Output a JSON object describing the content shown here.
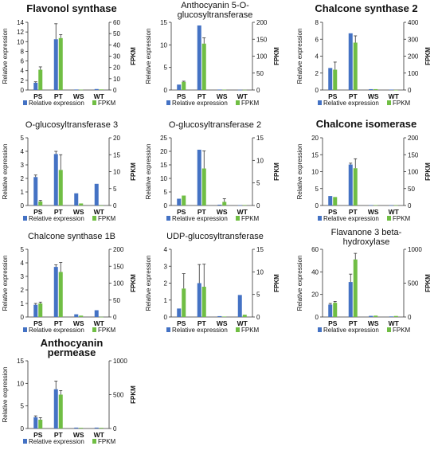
{
  "legend": {
    "series_a": "Relative expression",
    "series_b": "FPKM"
  },
  "colors": {
    "relative_expression": "#4472C4",
    "fpkm": "#70BE44",
    "axis": "#333333",
    "text": "#111111"
  },
  "chart_data": [
    {
      "type": "bar",
      "title": "Flavonol synthase",
      "categories": [
        "PS",
        "PT",
        "WS",
        "WT"
      ],
      "ylabel": "Relative expression",
      "y2label": "FPKM",
      "ylim": [
        0,
        14
      ],
      "yticks": [
        0,
        2,
        4,
        6,
        8,
        10,
        12,
        14
      ],
      "y2lim": [
        0,
        60
      ],
      "y2ticks": [
        0,
        10,
        20,
        30,
        40,
        50,
        60
      ],
      "series": [
        {
          "name": "Relative expression",
          "axis": "left",
          "values": [
            1.5,
            10.5,
            0.1,
            0.2
          ],
          "errors": [
            0.2,
            3.2,
            0,
            0
          ]
        },
        {
          "name": "FPKM",
          "axis": "right",
          "values": [
            18,
            46,
            0.3,
            0.5
          ],
          "errors": [
            2.5,
            3,
            0,
            0
          ]
        }
      ]
    },
    {
      "type": "bar",
      "title": "Anthocyanin 5-O-glucosyltransferase",
      "title_lines": [
        "Anthocyanin 5-O-",
        "glucosyltransferase"
      ],
      "categories": [
        "PS",
        "PT",
        "WS",
        "WT"
      ],
      "ylabel": "Relative expression",
      "y2label": "FPKM",
      "ylim": [
        0,
        15
      ],
      "yticks": [
        0,
        5,
        10,
        15
      ],
      "y2lim": [
        0,
        200
      ],
      "y2ticks": [
        0,
        50,
        100,
        150,
        200
      ],
      "series": [
        {
          "name": "Relative expression",
          "axis": "left",
          "values": [
            1.2,
            14.3,
            0.1,
            0.05
          ],
          "errors": [
            0,
            0,
            0,
            0
          ]
        },
        {
          "name": "FPKM",
          "axis": "right",
          "values": [
            24,
            137,
            1,
            0.5
          ],
          "errors": [
            2,
            17,
            0,
            0
          ]
        }
      ]
    },
    {
      "type": "bar",
      "title": "Chalcone synthase 2",
      "categories": [
        "PS",
        "PT",
        "WS",
        "WT"
      ],
      "ylabel": "Relative expression",
      "y2label": "FPKM",
      "ylim": [
        0,
        8
      ],
      "yticks": [
        0,
        2,
        4,
        6,
        8
      ],
      "y2lim": [
        0,
        400
      ],
      "y2ticks": [
        0,
        100,
        200,
        300,
        400
      ],
      "series": [
        {
          "name": "Relative expression",
          "axis": "left",
          "values": [
            2.6,
            6.7,
            0.1,
            0.05
          ],
          "errors": [
            0,
            0,
            0,
            0
          ]
        },
        {
          "name": "FPKM",
          "axis": "right",
          "values": [
            120,
            280,
            5,
            0.5
          ],
          "errors": [
            45,
            40,
            0,
            0
          ]
        }
      ]
    },
    {
      "type": "bar",
      "title": "O-glucosyltransferase 3",
      "categories": [
        "PS",
        "PT",
        "WS",
        "WT"
      ],
      "ylabel": "Relative expression",
      "y2label": "FPKM",
      "ylim": [
        0,
        5
      ],
      "yticks": [
        0,
        1,
        2,
        3,
        4,
        5
      ],
      "y2lim": [
        0,
        20
      ],
      "y2ticks": [
        0,
        5,
        10,
        15,
        20
      ],
      "series": [
        {
          "name": "Relative expression",
          "axis": "left",
          "values": [
            2.1,
            3.8,
            0.9,
            1.6
          ],
          "errors": [
            0.15,
            0.2,
            0,
            0
          ]
        },
        {
          "name": "FPKM",
          "axis": "right",
          "values": [
            1.2,
            10.5,
            0.6,
            0
          ],
          "errors": [
            0.3,
            4.5,
            0,
            0
          ]
        }
      ]
    },
    {
      "type": "bar",
      "title": "O-glucosyltransferase 2",
      "categories": [
        "PS",
        "PT",
        "WS",
        "WT"
      ],
      "ylabel": "Relative expression",
      "y2label": "FPKM",
      "ylim": [
        0,
        25
      ],
      "yticks": [
        0,
        5,
        10,
        15,
        20,
        25
      ],
      "y2lim": [
        0,
        15
      ],
      "y2ticks": [
        0,
        5,
        10,
        15
      ],
      "series": [
        {
          "name": "Relative expression",
          "axis": "left",
          "values": [
            2.5,
            20.6,
            0.3,
            0.1
          ],
          "errors": [
            0,
            0,
            0,
            0
          ]
        },
        {
          "name": "FPKM",
          "axis": "right",
          "values": [
            2.2,
            8.2,
            0.8,
            0.1
          ],
          "errors": [
            0,
            3.9,
            0.7,
            0
          ]
        }
      ]
    },
    {
      "type": "bar",
      "title": "Chalcone isomerase",
      "categories": [
        "PS",
        "PT",
        "WS",
        "WT"
      ],
      "ylabel": "Relative expression",
      "y2label": "FPKM",
      "ylim": [
        0,
        20
      ],
      "yticks": [
        0,
        5,
        10,
        15,
        20
      ],
      "y2lim": [
        0,
        200
      ],
      "y2ticks": [
        0,
        50,
        100,
        150,
        200
      ],
      "series": [
        {
          "name": "Relative expression",
          "axis": "left",
          "values": [
            2.8,
            12.1,
            0.1,
            0.05
          ],
          "errors": [
            0,
            0.4,
            0,
            0
          ]
        },
        {
          "name": "FPKM",
          "axis": "right",
          "values": [
            25,
            110,
            1,
            0.5
          ],
          "errors": [
            0,
            28,
            0,
            0
          ]
        }
      ]
    },
    {
      "type": "bar",
      "title": "Chalcone synthase 1B",
      "categories": [
        "PS",
        "PT",
        "WS",
        "WT"
      ],
      "ylabel": "Relative expression",
      "y2label": "FPKM",
      "ylim": [
        0,
        5
      ],
      "yticks": [
        0,
        1,
        2,
        3,
        4,
        5
      ],
      "y2lim": [
        0,
        200
      ],
      "y2ticks": [
        0,
        50,
        100,
        150,
        200
      ],
      "series": [
        {
          "name": "Relative expression",
          "axis": "left",
          "values": [
            0.9,
            3.7,
            0.2,
            0.5
          ],
          "errors": [
            0.1,
            0.15,
            0,
            0
          ]
        },
        {
          "name": "FPKM",
          "axis": "right",
          "values": [
            40,
            133,
            4,
            0.5
          ],
          "errors": [
            4,
            28,
            0,
            0
          ]
        }
      ]
    },
    {
      "type": "bar",
      "title": "UDP-glucosyltransferase",
      "categories": [
        "PS",
        "PT",
        "WS",
        "WT"
      ],
      "ylabel": "Relative expression",
      "y2label": "FPKM",
      "ylim": [
        0,
        4
      ],
      "yticks": [
        0,
        1,
        2,
        3,
        4
      ],
      "y2lim": [
        0,
        15
      ],
      "y2ticks": [
        0,
        5,
        10,
        15
      ],
      "series": [
        {
          "name": "Relative expression",
          "axis": "left",
          "values": [
            0.5,
            2.0,
            0.05,
            1.3
          ],
          "errors": [
            0,
            1.1,
            0,
            0
          ]
        },
        {
          "name": "FPKM",
          "axis": "right",
          "values": [
            6.3,
            6.7,
            0.1,
            0.5
          ],
          "errors": [
            3.3,
            5,
            0,
            0
          ]
        }
      ]
    },
    {
      "type": "bar",
      "title": "Flavanone 3 beta-hydroxylase",
      "title_lines": [
        "Flavanone 3 beta-",
        "hydroxylase"
      ],
      "categories": [
        "PS",
        "PT",
        "WS",
        "WT"
      ],
      "ylabel": "Relative expression",
      "y2label": "FPKM",
      "ylim": [
        0,
        60
      ],
      "yticks": [
        0,
        20,
        40,
        60
      ],
      "y2lim": [
        0,
        1000
      ],
      "y2ticks": [
        0,
        500,
        1000
      ],
      "series": [
        {
          "name": "Relative expression",
          "axis": "left",
          "values": [
            11,
            31,
            1,
            0.5
          ],
          "errors": [
            1,
            7,
            0,
            0
          ]
        },
        {
          "name": "FPKM",
          "axis": "right",
          "values": [
            210,
            850,
            20,
            15
          ],
          "errors": [
            20,
            90,
            0,
            0
          ]
        }
      ]
    },
    {
      "type": "bar",
      "title": "Anthocyanin permease",
      "title_lines": [
        "Anthocyanin",
        "permease"
      ],
      "categories": [
        "PS",
        "PT",
        "WS",
        "WT"
      ],
      "ylabel": "Relative expression",
      "y2label": "FPKM",
      "ylim": [
        0,
        15
      ],
      "yticks": [
        0,
        5,
        10,
        15
      ],
      "y2lim": [
        0,
        1000
      ],
      "y2ticks": [
        0,
        500,
        1000
      ],
      "series": [
        {
          "name": "Relative expression",
          "axis": "left",
          "values": [
            2.5,
            8.7,
            0.2,
            0.2
          ],
          "errors": [
            0.3,
            1.8,
            0,
            0
          ]
        },
        {
          "name": "FPKM",
          "axis": "right",
          "values": [
            130,
            500,
            10,
            10
          ],
          "errors": [
            30,
            60,
            0,
            0
          ]
        }
      ]
    }
  ]
}
